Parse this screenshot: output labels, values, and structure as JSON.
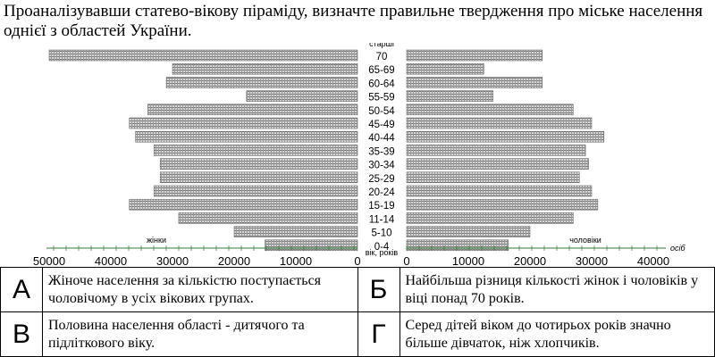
{
  "question": "Проаналізувавши статево-вікову піраміду, визначте правильне твердження про міське населення однієї з областей України.",
  "chart_data": {
    "type": "bar",
    "orientation": "horizontal-population-pyramid",
    "age_groups": [
      "70 старші",
      "65-69",
      "60-64",
      "55-59",
      "50-54",
      "45-49",
      "40-44",
      "35-39",
      "30-34",
      "25-29",
      "20-24",
      "15-19",
      "11-14",
      "5-10",
      "0-4"
    ],
    "age_label_top": "старші",
    "age_label_top_value": "70",
    "female_label": "жінки",
    "male_label": "чоловіки",
    "center_axis_label": "вік, років",
    "unit_label": "осіб",
    "female_ticks": [
      "50000",
      "40000",
      "30000",
      "20000",
      "10000",
      "0"
    ],
    "male_ticks": [
      "0",
      "10000",
      "20000",
      "30000",
      "40000"
    ],
    "female_values": [
      50000,
      30000,
      31000,
      18000,
      34000,
      37000,
      36000,
      33000,
      32000,
      32000,
      33000,
      37000,
      29000,
      20000,
      15000
    ],
    "male_values": [
      22000,
      12500,
      22000,
      14000,
      27000,
      30000,
      32000,
      29000,
      29500,
      28000,
      30000,
      31000,
      27000,
      20000,
      16500
    ],
    "xlim": [
      0,
      50000
    ],
    "grid": false
  },
  "options": [
    {
      "letter": "А",
      "text": "Жіноче населення за кількістю поступається чоловічому в усіх вікових групах."
    },
    {
      "letter": "Б",
      "text": "Найбільша різниця кількості жінок і чоловіків у віці понад 70 років."
    },
    {
      "letter": "В",
      "text": "Половина населення області - дитячого та підліткового віку."
    },
    {
      "letter": "Г",
      "text": "Серед дітей віком до чотирьох років значно більше дівчаток, ніж хлопчиків."
    }
  ]
}
